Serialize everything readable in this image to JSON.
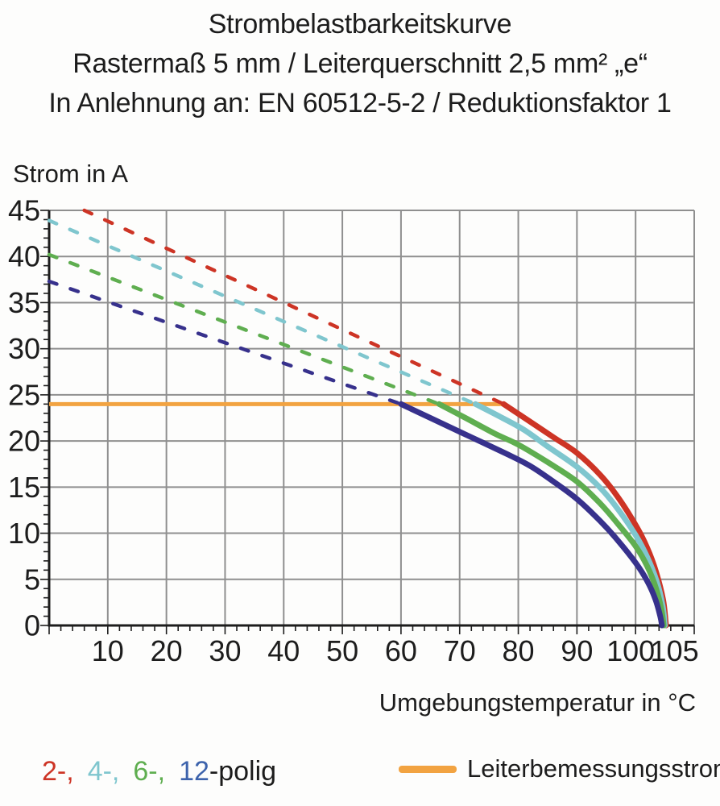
{
  "title": {
    "line1": "Strombelastbarkeitskurve",
    "line2": "Rastermaß 5 mm / Leiterquerschnitt 2,5 mm² „e“",
    "line3": "In Anlehnung an: EN 60512-5-2 / Reduktionsfaktor 1"
  },
  "chart": {
    "y_axis_label": "Strom in A",
    "x_axis_label": "Umgebungstemperatur in °C"
  },
  "legend": {
    "poles": [
      {
        "label": "2-,",
        "color": "#cd3425"
      },
      {
        "label": "4-,",
        "color": "#7fc6ce"
      },
      {
        "label": "6-,",
        "color": "#5fae50"
      },
      {
        "label": "12",
        "color": "#3d63ac"
      }
    ],
    "poles_suffix": "-polig",
    "rated_current_label": "Leiterbemessungsstrom"
  },
  "chart_data": {
    "type": "line",
    "title": "Strombelastbarkeitskurve",
    "xlabel": "Umgebungstemperatur in °C",
    "ylabel": "Strom in A",
    "xlim": [
      0,
      110
    ],
    "ylim": [
      0,
      45
    ],
    "x_ticks": [
      10,
      20,
      30,
      40,
      50,
      60,
      70,
      80,
      90,
      100,
      105
    ],
    "y_ticks": [
      0,
      5,
      10,
      15,
      20,
      25,
      30,
      35,
      40,
      45
    ],
    "grid": true,
    "grid_color": "#8f8f8f",
    "axis_color": "#1d1d1d",
    "rated_current": {
      "name": "Leiterbemessungsstrom",
      "value_a": 24,
      "x_from": 0,
      "x_to": 77.5,
      "color": "#f2a341"
    },
    "series": [
      {
        "name": "2-polig",
        "color": "#cd3425",
        "derating_dashed": [
          [
            6,
            45
          ],
          [
            77.5,
            24
          ]
        ],
        "limit_solid": [
          [
            77.5,
            24
          ],
          [
            82,
            22.1
          ],
          [
            86,
            20.4
          ],
          [
            90,
            18.7
          ],
          [
            94,
            16.3
          ],
          [
            97,
            13.9
          ],
          [
            100,
            10.9
          ],
          [
            102,
            8.4
          ],
          [
            103.5,
            5.8
          ],
          [
            104.7,
            2.8
          ],
          [
            105.2,
            0
          ]
        ]
      },
      {
        "name": "4-polig",
        "color": "#7fc6ce",
        "derating_dashed": [
          [
            0,
            43.9
          ],
          [
            72.7,
            24
          ]
        ],
        "limit_solid": [
          [
            72.7,
            24
          ],
          [
            77,
            22.6
          ],
          [
            81,
            21.2
          ],
          [
            85,
            19.4
          ],
          [
            90,
            17.2
          ],
          [
            94,
            14.9
          ],
          [
            97,
            12.6
          ],
          [
            100,
            9.8
          ],
          [
            102,
            7.4
          ],
          [
            103.6,
            4.8
          ],
          [
            104.6,
            2.2
          ],
          [
            105,
            0
          ]
        ]
      },
      {
        "name": "6-polig",
        "color": "#5fae50",
        "derating_dashed": [
          [
            0,
            40.2
          ],
          [
            66.5,
            24
          ]
        ],
        "limit_solid": [
          [
            66.5,
            24
          ],
          [
            71,
            22.5
          ],
          [
            76,
            20.8
          ],
          [
            80,
            19.6
          ],
          [
            85,
            17.7
          ],
          [
            90,
            15.6
          ],
          [
            94,
            13.2
          ],
          [
            97,
            11.0
          ],
          [
            100,
            8.6
          ],
          [
            102,
            6.4
          ],
          [
            103.5,
            4.0
          ],
          [
            104.4,
            1.8
          ],
          [
            104.8,
            0
          ]
        ]
      },
      {
        "name": "12-polig",
        "color": "#37318c",
        "derating_dashed": [
          [
            0,
            37.3
          ],
          [
            60,
            24
          ]
        ],
        "limit_solid": [
          [
            60,
            24
          ],
          [
            66,
            22.2
          ],
          [
            72,
            20.4
          ],
          [
            78,
            18.6
          ],
          [
            82,
            17.3
          ],
          [
            86,
            15.6
          ],
          [
            90,
            13.7
          ],
          [
            94,
            11.3
          ],
          [
            97,
            9.2
          ],
          [
            100,
            6.8
          ],
          [
            102,
            4.8
          ],
          [
            103.4,
            2.8
          ],
          [
            104.2,
            1.0
          ],
          [
            104.5,
            0
          ]
        ]
      }
    ]
  }
}
